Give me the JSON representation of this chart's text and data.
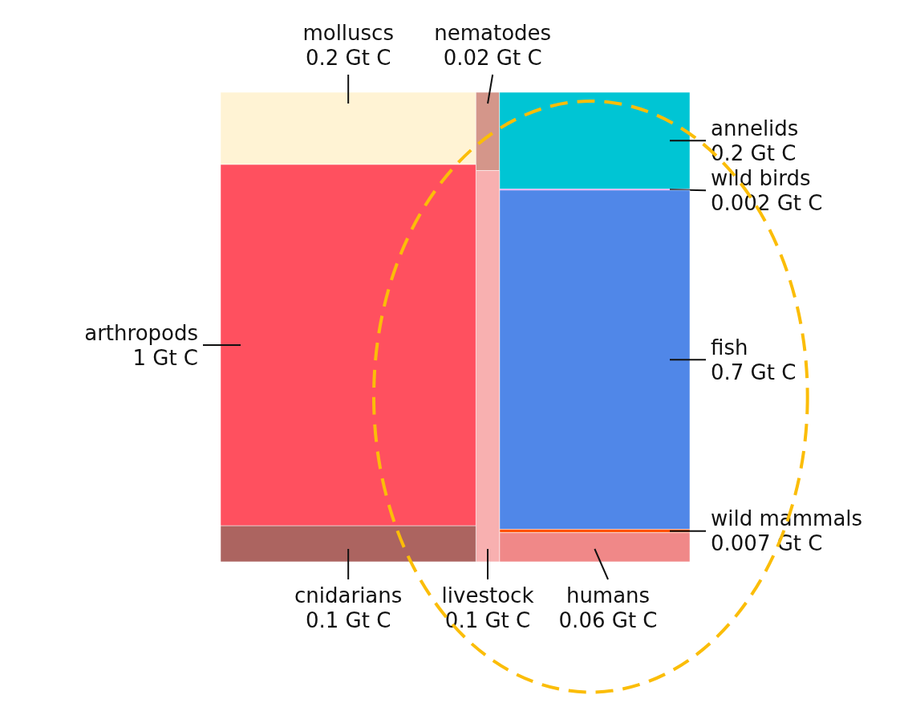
{
  "chart_data": {
    "type": "other",
    "categories": [
      "molluscs",
      "nematodes",
      "annelids",
      "wild birds",
      "fish",
      "wild mammals",
      "humans",
      "livestock",
      "cnidarians",
      "arthropods"
    ],
    "values": [
      0.2,
      0.02,
      0.2,
      0.002,
      0.7,
      0.007,
      0.06,
      0.1,
      0.1,
      1
    ],
    "value_labels": [
      "0.2 Gt C",
      "0.02 Gt C",
      "0.2 Gt C",
      "0.002 Gt C",
      "0.7 Gt C",
      "0.007 Gt C",
      "0.06 Gt C",
      "0.1 Gt C",
      "0.1 Gt C",
      "1 Gt C"
    ],
    "colors": [
      "#fff3d4",
      "#d4968a",
      "#00c5d4",
      "#e83ee8",
      "#5087e8",
      "#ff5000",
      "#f08888",
      "#f8b0b0",
      "#ac6460",
      "#ff505f"
    ]
  }
}
